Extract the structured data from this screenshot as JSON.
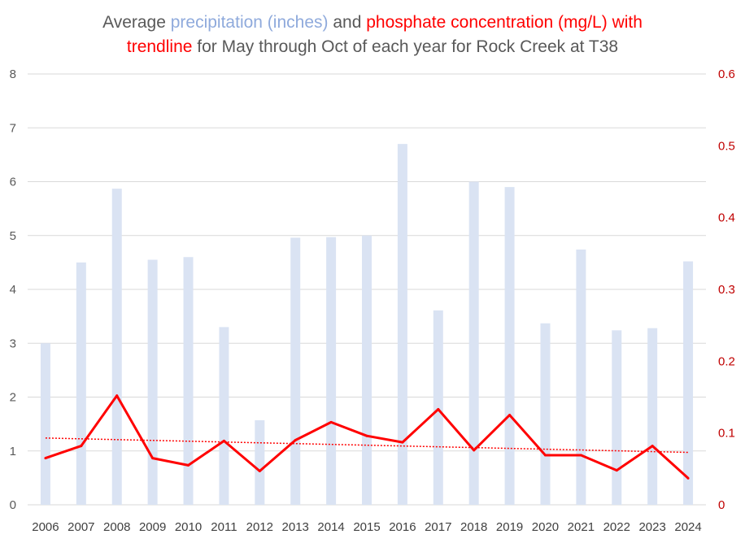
{
  "chart_data": {
    "type": "bar+line",
    "title": {
      "part1": "Average ",
      "part2_precip": "precipitation (inches)",
      "part3": " and ",
      "part4_phos": "phosphate concentration (mg/L) with",
      "part5_trend": "trendline",
      "part6": " for May through Oct of each year for Rock Creek at T38"
    },
    "categories": [
      "2006",
      "2007",
      "2008",
      "2009",
      "2010",
      "2011",
      "2012",
      "2013",
      "2014",
      "2015",
      "2016",
      "2017",
      "2018",
      "2019",
      "2020",
      "2021",
      "2022",
      "2023",
      "2024"
    ],
    "series": [
      {
        "name": "precipitation (inches)",
        "type": "bar",
        "axis": "left",
        "color": "#dae3f3",
        "values": [
          3.0,
          4.5,
          5.87,
          4.55,
          4.6,
          3.3,
          1.57,
          4.96,
          4.97,
          5.0,
          6.7,
          3.61,
          6.0,
          5.9,
          3.37,
          4.74,
          3.24,
          3.28,
          4.52
        ]
      },
      {
        "name": "phosphate concentration (mg/L)",
        "type": "line",
        "axis": "right",
        "color": "#ff0000",
        "values": [
          0.065,
          0.082,
          0.152,
          0.065,
          0.055,
          0.089,
          0.047,
          0.09,
          0.115,
          0.096,
          0.087,
          0.133,
          0.076,
          0.125,
          0.069,
          0.069,
          0.048,
          0.082,
          0.037
        ]
      },
      {
        "name": "trendline",
        "type": "trendline",
        "axis": "right",
        "color": "#ff0000",
        "start": 0.093,
        "end": 0.073
      }
    ],
    "y_left": {
      "min": 0,
      "max": 8,
      "ticks": [
        "0",
        "1",
        "2",
        "3",
        "4",
        "5",
        "6",
        "7",
        "8"
      ]
    },
    "y_right": {
      "min": 0,
      "max": 0.6,
      "ticks": [
        "0",
        "0.1",
        "0.2",
        "0.3",
        "0.4",
        "0.5",
        "0.6"
      ]
    },
    "grid": true,
    "colors": {
      "left_axis_text": "#595959",
      "right_axis_text": "#c00000",
      "grid": "#d9d9d9"
    }
  }
}
